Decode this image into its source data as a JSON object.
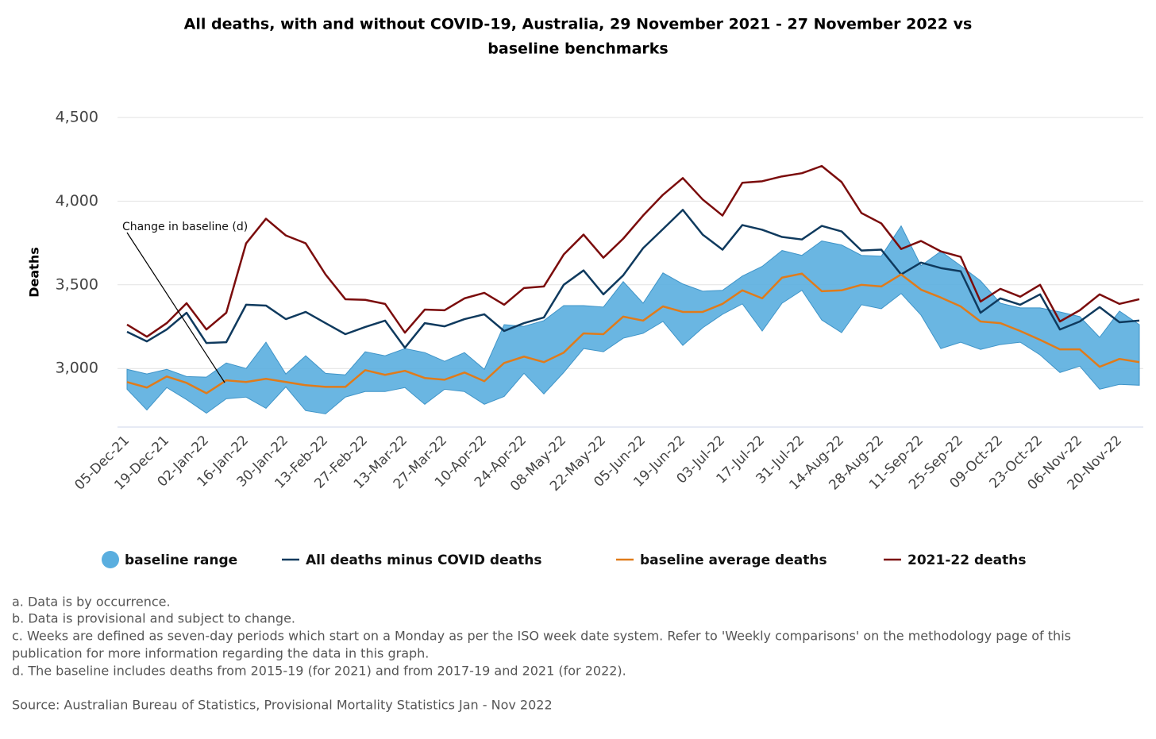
{
  "chart_data": {
    "type": "line",
    "title": [
      "All deaths, with and without COVID-19, Australia, 29 November 2021 - 27 November 2022 vs",
      "baseline benchmarks"
    ],
    "y_label": "Deaths",
    "annotation": "Change in baseline (d)",
    "categories": [
      "05-Dec-21",
      null,
      "19-Dec-21",
      null,
      "02-Jan-22",
      null,
      "16-Jan-22",
      null,
      "30-Jan-22",
      null,
      "13-Feb-22",
      null,
      "27-Feb-22",
      null,
      "13-Mar-22",
      null,
      "27-Mar-22",
      null,
      "10-Apr-22",
      null,
      "24-Apr-22",
      null,
      "08-May-22",
      null,
      "22-May-22",
      null,
      "05-Jun-22",
      null,
      "19-Jun-22",
      null,
      "03-Jul-22",
      null,
      "17-Jul-22",
      null,
      "31-Jul-22",
      null,
      "14-Aug-22",
      null,
      "28-Aug-22",
      null,
      "11-Sep-22",
      null,
      "25-Sep-22",
      null,
      "09-Oct-22",
      null,
      "23-Oct-22",
      null,
      "06-Nov-22",
      null,
      "20-Nov-22",
      null
    ],
    "band": {
      "name": "baseline range",
      "color": "#5aaedf",
      "upper": [
        2995,
        2967,
        2995,
        2952,
        2948,
        3033,
        3000,
        3157,
        2967,
        3076,
        2971,
        2962,
        3100,
        3076,
        3119,
        3095,
        3043,
        3095,
        2995,
        3262,
        3252,
        3286,
        3376,
        3376,
        3367,
        3519,
        3390,
        3571,
        3505,
        3462,
        3467,
        3552,
        3610,
        3705,
        3676,
        3762,
        3738,
        3676,
        3671,
        3852,
        3614,
        3700,
        3614,
        3524,
        3390,
        3362,
        3362,
        3338,
        3310,
        3186,
        3343,
        3262
      ],
      "lower": [
        2876,
        2752,
        2886,
        2814,
        2733,
        2819,
        2829,
        2762,
        2890,
        2748,
        2729,
        2829,
        2862,
        2862,
        2886,
        2786,
        2876,
        2862,
        2786,
        2833,
        2971,
        2848,
        2976,
        3119,
        3100,
        3181,
        3210,
        3281,
        3138,
        3243,
        3324,
        3386,
        3224,
        3390,
        3467,
        3290,
        3214,
        3381,
        3357,
        3448,
        3319,
        3119,
        3157,
        3114,
        3143,
        3157,
        3081,
        2976,
        3014,
        2876,
        2905,
        2900
      ]
    },
    "series": [
      {
        "name": "All deaths minus COVID deaths",
        "color": "#0f3a5e",
        "values": [
          3219,
          3162,
          3233,
          3333,
          3152,
          3157,
          3381,
          3376,
          3295,
          3338,
          3271,
          3205,
          3248,
          3286,
          3124,
          3271,
          3252,
          3295,
          3324,
          3224,
          3271,
          3305,
          3500,
          3586,
          3443,
          3557,
          3719,
          3833,
          3948,
          3800,
          3710,
          3857,
          3829,
          3786,
          3771,
          3852,
          3819,
          3705,
          3710,
          3562,
          3633,
          3600,
          3581,
          3333,
          3419,
          3381,
          3443,
          3233,
          3281,
          3367,
          3276,
          3286
        ]
      },
      {
        "name": "baseline average deaths",
        "color": "#e07b1a",
        "values": [
          2919,
          2886,
          2952,
          2914,
          2852,
          2929,
          2919,
          2938,
          2919,
          2900,
          2890,
          2890,
          2990,
          2962,
          2986,
          2943,
          2933,
          2976,
          2924,
          3033,
          3071,
          3038,
          3095,
          3210,
          3205,
          3310,
          3286,
          3371,
          3338,
          3338,
          3386,
          3467,
          3419,
          3543,
          3567,
          3462,
          3467,
          3500,
          3490,
          3562,
          3471,
          3424,
          3371,
          3281,
          3271,
          3224,
          3171,
          3114,
          3114,
          3010,
          3057,
          3038
        ]
      },
      {
        "name": "2021-22 deaths",
        "color": "#7b0c0c",
        "values": [
          3262,
          3190,
          3271,
          3390,
          3233,
          3333,
          3748,
          3895,
          3795,
          3748,
          3562,
          3414,
          3410,
          3386,
          3214,
          3352,
          3348,
          3419,
          3452,
          3381,
          3481,
          3490,
          3681,
          3800,
          3662,
          3776,
          3914,
          4038,
          4138,
          4010,
          3914,
          4110,
          4119,
          4148,
          4167,
          4210,
          4114,
          3929,
          3867,
          3714,
          3762,
          3700,
          3667,
          3400,
          3476,
          3429,
          3500,
          3281,
          3348,
          3443,
          3386,
          3414
        ]
      }
    ],
    "ylim": [
      2650,
      4500
    ],
    "yticks": [
      {
        "value": 3000,
        "label": "3,000"
      },
      {
        "value": 3500,
        "label": "3,500"
      },
      {
        "value": 4000,
        "label": "4,000"
      },
      {
        "value": 4500,
        "label": "4,500"
      }
    ],
    "grid": true,
    "legend": "bottom",
    "notes": [
      "a. Data is by occurrence.",
      "b. Data is provisional and subject to change.",
      "c. Weeks are defined as seven-day periods which start on a Monday as per the ISO week date system. Refer to 'Weekly comparisons' on the methodology page of this",
      "publication for more information regarding the data in this graph.",
      "d. The baseline includes deaths from 2015-19 (for 2021) and from 2017-19 and 2021 (for 2022)."
    ],
    "source": "Source: Australian Bureau of Statistics, Provisional Mortality Statistics Jan - Nov 2022"
  }
}
